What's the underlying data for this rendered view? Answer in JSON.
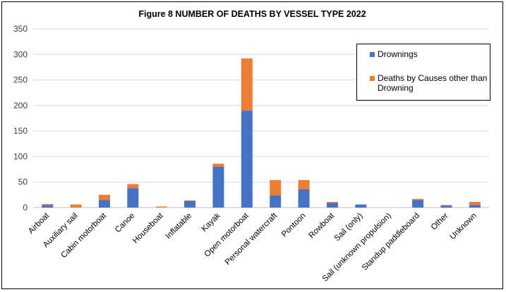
{
  "chart_data": {
    "type": "bar",
    "stacked": true,
    "title": "Figure 8 NUMBER OF DEATHS BY VESSEL TYPE 2022",
    "categories": [
      "Airboat",
      "Auxiliary sail",
      "Cabin motorboat",
      "Canoe",
      "Houseboat",
      "Inflatable",
      "Kayak",
      "Open motorboat",
      "Personal watercraft",
      "Pontoon",
      "Rowboat",
      "Sail (only)",
      "Sail (unknown propulsion)",
      "Standup paddleboard",
      "Other",
      "Unknown"
    ],
    "series": [
      {
        "name": "Drownings",
        "color": "#4472C4",
        "values": [
          5,
          0,
          15,
          38,
          0,
          13,
          80,
          190,
          24,
          36,
          9,
          6,
          0,
          15,
          4,
          5
        ]
      },
      {
        "name": "Deaths by Causes other than Drowning",
        "color": "#ED7D31",
        "values": [
          2,
          6,
          10,
          8,
          2,
          1,
          6,
          102,
          30,
          18,
          2,
          0,
          0,
          2,
          1,
          6
        ]
      }
    ],
    "ylim": [
      0,
      350
    ],
    "yticks": [
      0,
      50,
      100,
      150,
      200,
      250,
      300,
      350
    ],
    "grid": true,
    "legend": "right"
  }
}
